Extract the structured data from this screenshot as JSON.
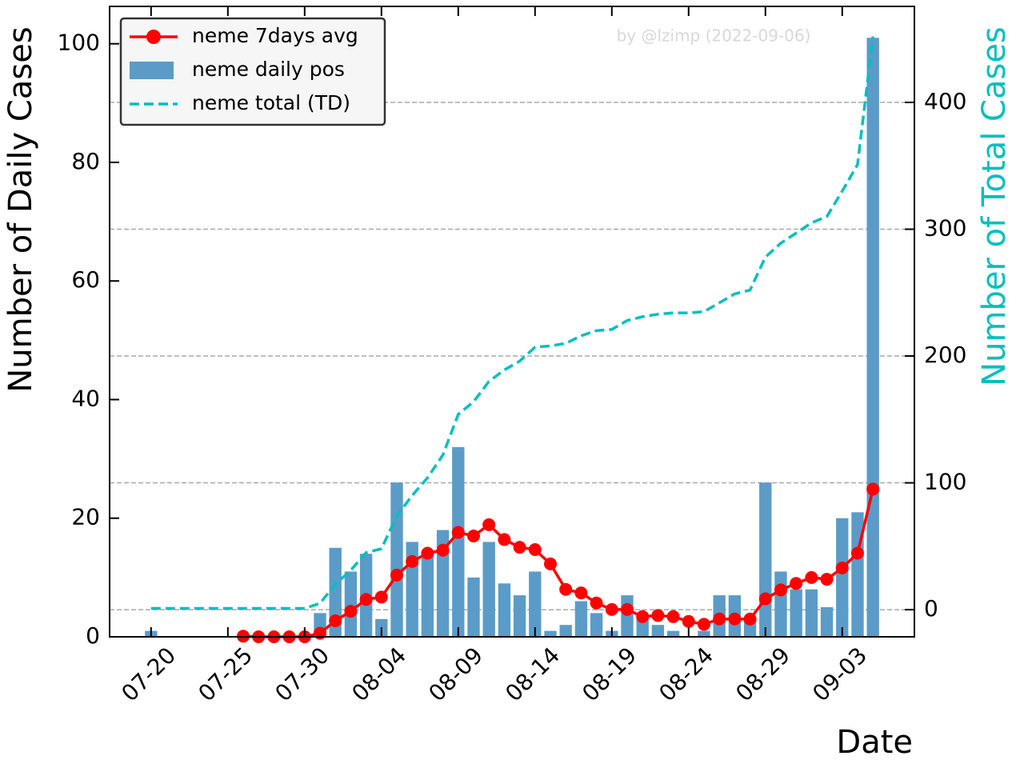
{
  "chart_data": {
    "type": "combo",
    "annotation": "by @lzimp (2022-09-06)",
    "x_label": "Date",
    "y_label": "Number of Daily Cases",
    "y2_label": "Number of Total Cases",
    "categories": [
      "07-20",
      null,
      null,
      null,
      null,
      "07-25",
      null,
      null,
      null,
      null,
      "07-30",
      null,
      null,
      null,
      null,
      "08-04",
      null,
      null,
      null,
      null,
      "08-09",
      null,
      null,
      null,
      null,
      "08-14",
      null,
      null,
      null,
      null,
      "08-19",
      null,
      null,
      null,
      null,
      "08-24",
      null,
      null,
      null,
      null,
      "08-29",
      null,
      null,
      null,
      null,
      "09-03",
      null,
      null
    ],
    "xlim": [
      -2.7,
      49.7
    ],
    "ylim": [
      0,
      106.3
    ],
    "yticks": [
      0,
      20,
      40,
      60,
      80,
      100
    ],
    "y2lim": [
      -21.4,
      475.7
    ],
    "y2ticks": [
      0,
      100,
      200,
      300,
      400
    ],
    "grid": true,
    "legend": "upper left",
    "series": [
      {
        "name": "neme 7days avg",
        "kind": "line-marker",
        "color": "#ff0000",
        "values": [
          null,
          null,
          null,
          null,
          null,
          null,
          0.1,
          0,
          0,
          0,
          0,
          0.6,
          2.7,
          4.3,
          6.3,
          6.7,
          10.4,
          12.7,
          14.1,
          14.6,
          17.6,
          17,
          18.9,
          16.4,
          15.1,
          14.7,
          12.3,
          8,
          7.4,
          5.7,
          4.6,
          4.6,
          3.4,
          3.6,
          3.4,
          2.6,
          2.1,
          3,
          3,
          3,
          6.4,
          7.9,
          9,
          10,
          9.7,
          11.6,
          14.1,
          24.9
        ]
      },
      {
        "name": "neme daily pos",
        "kind": "bar",
        "color": "#5b9bc8",
        "values": [
          1,
          0,
          0,
          0,
          0,
          0,
          0,
          0,
          0,
          0,
          0,
          4,
          15,
          11,
          14,
          3,
          26,
          16,
          14,
          18,
          32,
          10,
          16,
          9,
          7,
          11,
          1,
          2,
          6,
          4,
          1,
          7,
          3,
          2,
          1,
          0,
          1,
          7,
          7,
          3,
          26,
          11,
          8,
          8,
          5,
          20,
          21,
          101
        ]
      },
      {
        "name": "neme total (TD)",
        "kind": "dashed",
        "axis": "y2",
        "color": "#00bfbf",
        "values": [
          1,
          1,
          1,
          1,
          1,
          1,
          1,
          1,
          1,
          1,
          1,
          5,
          20,
          31,
          45,
          48,
          74,
          90,
          104,
          122,
          154,
          164,
          180,
          189,
          196,
          207,
          208,
          210,
          216,
          220,
          221,
          228,
          231,
          233,
          234,
          234,
          235,
          242,
          249,
          252,
          278,
          289,
          297,
          305,
          310,
          330,
          351,
          452
        ]
      }
    ]
  }
}
